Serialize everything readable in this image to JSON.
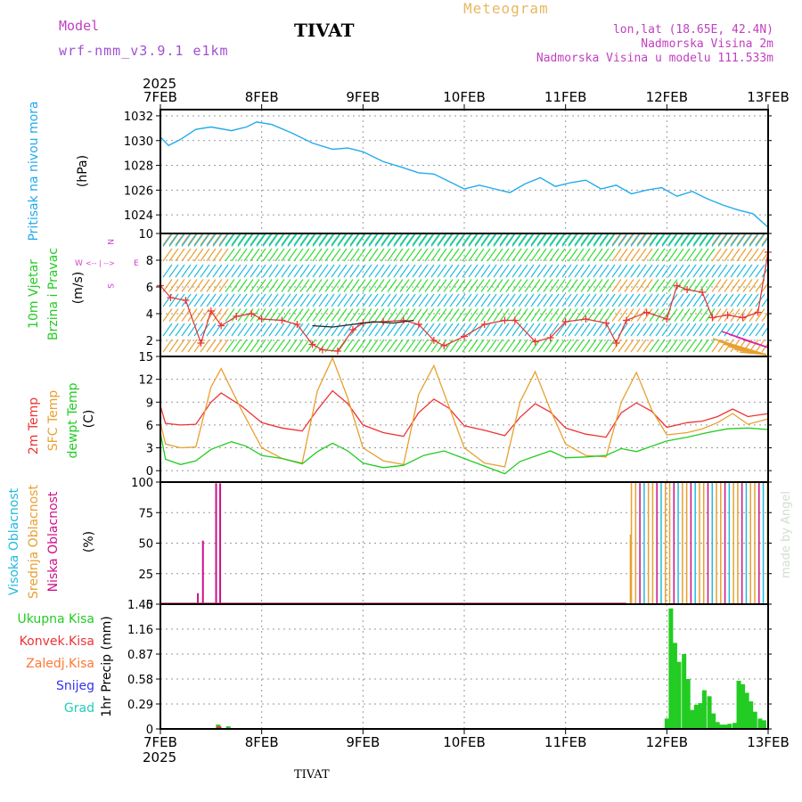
{
  "header": {
    "model_label": "Model",
    "model_name": "wrf-nmm_v3.9.1 e1km",
    "title": "TIVAT",
    "meteogram_label": "Meteogram",
    "lonlat": "lon,lat (18.65E, 42.4N)",
    "elevation": "Nadmorska Visina 2m",
    "model_elevation": "Nadmorska Visina u modelu 111.533m"
  },
  "footer": {
    "station": "TIVAT"
  },
  "watermark": "made by Angel",
  "time_axis": {
    "year_top": "2025",
    "year_bottom": "2025",
    "days": [
      "7FEB",
      "8FEB",
      "9FEB",
      "10FEB",
      "11FEB",
      "12FEB",
      "13FEB"
    ]
  },
  "colors": {
    "pressure": "#22aaee",
    "temp2m": "#ee3333",
    "sfc": "#e8a030",
    "dewpoint": "#22cc22",
    "high_cloud": "#22bbdd",
    "mid_cloud": "#e8a030",
    "low_cloud": "#cc1188",
    "precip_total": "#22cc22",
    "precip_conv": "#ee3333",
    "precip_frz": "#ff7733",
    "snow": "#3333ee",
    "hail": "#22ccbb",
    "wind_label": "#22cc22",
    "compass": "#cc44cc"
  },
  "chart_data": [
    {
      "type": "line",
      "name": "pressure",
      "ylabel": [
        "Pritisak na nivou mora",
        "(hPa)"
      ],
      "ylim": [
        1022.5,
        1032.5
      ],
      "yticks": [
        "1024",
        "1026",
        "1028",
        "1030",
        "1032"
      ],
      "ytick_values": [
        1024,
        1026,
        1028,
        1030,
        1032
      ],
      "grid": true,
      "series": [
        {
          "x": [
            0,
            0.08,
            0.2,
            0.35,
            0.5,
            0.7,
            0.85,
            0.95,
            1.1,
            1.3,
            1.5,
            1.7,
            1.85,
            2.0,
            2.2,
            2.4,
            2.55,
            2.7,
            2.85,
            3.0,
            3.15,
            3.3,
            3.45,
            3.6,
            3.75,
            3.9,
            4.05,
            4.2,
            4.35,
            4.5,
            4.65,
            4.8,
            4.95,
            5.1,
            5.25,
            5.4,
            5.55,
            5.7,
            5.85,
            6.0
          ],
          "y": [
            1030.3,
            1029.6,
            1030.1,
            1030.9,
            1031.1,
            1030.8,
            1031.1,
            1031.5,
            1031.3,
            1030.6,
            1029.8,
            1029.3,
            1029.4,
            1029.1,
            1028.3,
            1027.8,
            1027.4,
            1027.3,
            1026.7,
            1026.1,
            1026.4,
            1026.1,
            1025.8,
            1026.5,
            1027.0,
            1026.3,
            1026.6,
            1026.8,
            1026.1,
            1026.4,
            1025.7,
            1026.0,
            1026.2,
            1025.5,
            1025.9,
            1025.3,
            1024.8,
            1024.4,
            1024.1,
            1023.0
          ]
        }
      ]
    },
    {
      "type": "scatter",
      "name": "wind",
      "ylabel": [
        "10m Vjetar",
        "Brzina i Pravac",
        "(m/s)"
      ],
      "compass": {
        "n": "N",
        "s": "S",
        "e": "E",
        "w": "W",
        "arrows": "<-- | -->"
      },
      "ylim": [
        0.8,
        10
      ],
      "yticks": [
        "2",
        "4",
        "6",
        "8",
        "10"
      ],
      "ytick_values": [
        2,
        4,
        6,
        8,
        10
      ],
      "grid": true,
      "barb_rows": [
        {
          "y": 9.6,
          "color": "#33dd33"
        },
        {
          "y": 9.5,
          "color": "#22bbdd"
        },
        {
          "y": 8.4,
          "color": "#33dd33"
        },
        {
          "y": 7.2,
          "color": "#22bbdd"
        },
        {
          "y": 6.1,
          "color": "#33dd33"
        },
        {
          "y": 5.0,
          "color": "#22bbdd"
        },
        {
          "y": 3.9,
          "color": "#33dd33"
        },
        {
          "y": 2.8,
          "color": "#22bbdd"
        },
        {
          "y": 1.6,
          "color": "#33dd33"
        }
      ],
      "orange_segments": [
        [
          0,
          0.6
        ],
        [
          4.4,
          4.8
        ],
        [
          5.4,
          6.0
        ]
      ],
      "speed": {
        "x": [
          0,
          0.1,
          0.25,
          0.4,
          0.5,
          0.6,
          0.75,
          0.9,
          1.0,
          1.2,
          1.35,
          1.5,
          1.6,
          1.75,
          1.9,
          2.0,
          2.2,
          2.4,
          2.55,
          2.7,
          2.8,
          3.0,
          3.2,
          3.4,
          3.5,
          3.7,
          3.85,
          4.0,
          4.2,
          4.4,
          4.5,
          4.6,
          4.8,
          5.0,
          5.1,
          5.2,
          5.35,
          5.45,
          5.6,
          5.75,
          5.9,
          6.0
        ],
        "y": [
          6.1,
          5.2,
          5.0,
          1.8,
          4.2,
          3.1,
          3.8,
          4.0,
          3.6,
          3.5,
          3.2,
          1.7,
          1.3,
          1.2,
          2.8,
          3.3,
          3.4,
          3.5,
          3.2,
          2.0,
          1.6,
          2.3,
          3.2,
          3.5,
          3.5,
          1.9,
          2.2,
          3.4,
          3.6,
          3.3,
          1.8,
          3.5,
          4.1,
          3.6,
          6.1,
          5.8,
          5.6,
          3.7,
          3.9,
          3.7,
          4.1,
          8.6
        ]
      },
      "pressure_wind": {
        "x": [
          1.5,
          1.7,
          1.9,
          2.1,
          2.3,
          2.5
        ],
        "y": [
          3.1,
          3.0,
          3.2,
          3.4,
          3.3,
          3.5
        ]
      }
    },
    {
      "type": "line",
      "name": "temperature",
      "ylabel": [
        "2m Temp",
        "SFC Temp",
        "dewpt Temp",
        "(C)"
      ],
      "ylim": [
        -1.5,
        15
      ],
      "yticks": [
        "0",
        "3",
        "6",
        "9",
        "12",
        "15"
      ],
      "ytick_values": [
        0,
        3,
        6,
        9,
        12,
        15
      ],
      "grid": true,
      "series": [
        {
          "name": "2m Temp",
          "x": [
            0,
            0.05,
            0.2,
            0.35,
            0.5,
            0.6,
            0.8,
            1.0,
            1.2,
            1.4,
            1.55,
            1.7,
            1.85,
            2.0,
            2.2,
            2.4,
            2.55,
            2.7,
            2.85,
            3.0,
            3.2,
            3.4,
            3.55,
            3.7,
            3.85,
            4.0,
            4.2,
            4.4,
            4.55,
            4.7,
            4.85,
            5.0,
            5.2,
            5.35,
            5.5,
            5.65,
            5.8,
            6.0
          ],
          "y": [
            8.5,
            6.2,
            6.0,
            6.1,
            9.0,
            10.2,
            8.5,
            6.3,
            5.6,
            5.2,
            8.0,
            10.5,
            8.8,
            6.0,
            5.0,
            4.5,
            7.6,
            9.4,
            8.2,
            5.9,
            5.3,
            4.6,
            7.0,
            8.8,
            7.7,
            5.6,
            4.8,
            4.4,
            7.6,
            8.9,
            7.8,
            5.7,
            6.3,
            6.5,
            7.1,
            8.1,
            7.1,
            7.5
          ]
        },
        {
          "name": "SFC Temp",
          "x": [
            0,
            0.05,
            0.2,
            0.35,
            0.5,
            0.6,
            0.8,
            1.0,
            1.2,
            1.4,
            1.55,
            1.7,
            1.85,
            2.0,
            2.2,
            2.4,
            2.55,
            2.7,
            2.85,
            3.0,
            3.2,
            3.4,
            3.55,
            3.7,
            3.85,
            4.0,
            4.2,
            4.4,
            4.55,
            4.7,
            4.85,
            5.0,
            5.2,
            5.35,
            5.5,
            5.65,
            5.8,
            6.0
          ],
          "y": [
            6.3,
            3.5,
            3.0,
            3.1,
            11.0,
            13.4,
            8.0,
            3.0,
            1.6,
            1.0,
            10.5,
            14.8,
            9.5,
            3.0,
            1.3,
            0.8,
            10.0,
            13.8,
            8.4,
            3.0,
            1.0,
            0.5,
            9.0,
            13.0,
            8.0,
            3.5,
            2.0,
            1.8,
            9.0,
            12.9,
            8.0,
            4.7,
            5.0,
            5.5,
            6.3,
            7.5,
            6.1,
            6.8
          ]
        },
        {
          "name": "dewpt Temp",
          "x": [
            0,
            0.05,
            0.2,
            0.35,
            0.5,
            0.7,
            0.85,
            1.0,
            1.2,
            1.4,
            1.55,
            1.7,
            1.85,
            2.0,
            2.2,
            2.4,
            2.6,
            2.8,
            3.0,
            3.2,
            3.4,
            3.55,
            3.7,
            3.85,
            4.0,
            4.2,
            4.4,
            4.55,
            4.7,
            4.85,
            5.0,
            5.2,
            5.4,
            5.6,
            5.8,
            6.0
          ],
          "y": [
            5.0,
            1.5,
            0.8,
            1.3,
            2.8,
            3.8,
            3.2,
            2.0,
            1.6,
            0.9,
            2.5,
            3.6,
            2.6,
            1.0,
            0.4,
            0.7,
            2.0,
            2.6,
            1.6,
            0.6,
            -0.4,
            1.2,
            1.9,
            2.6,
            1.7,
            1.8,
            2.0,
            2.9,
            2.5,
            3.2,
            3.9,
            4.4,
            5.0,
            5.5,
            5.6,
            5.4
          ]
        }
      ]
    },
    {
      "type": "bar",
      "name": "cloud",
      "ylabel": [
        "Visoka Oblacnost",
        "Srednja Oblacnost",
        "Niska Oblacnost",
        "(%)"
      ],
      "ylim": [
        0,
        100
      ],
      "yticks": [
        "0",
        "25",
        "50",
        "75",
        "100"
      ],
      "ytick_values": [
        0,
        25,
        50,
        75,
        100
      ],
      "grid": true,
      "low_cloud": {
        "x": [
          0.37,
          0.42,
          0.55,
          0.59
        ],
        "y": [
          9,
          52,
          99,
          99
        ]
      },
      "mid_cloud": {
        "x_start": 4.65,
        "x_end": 6.0,
        "value": 100,
        "first": {
          "x": 4.64,
          "y": 57
        }
      },
      "high_cloud": {
        "x": [
          4.66,
          4.9,
          5.0,
          5.02,
          5.05,
          5.08,
          5.1,
          5.5
        ],
        "y": [
          100,
          100,
          52,
          52,
          52,
          52,
          100,
          100
        ]
      }
    },
    {
      "type": "bar",
      "name": "precipitation",
      "ylabel": [
        "1hr Precip (mm)"
      ],
      "legend": [
        "Ukupna Kisa",
        "Konvek.Kisa",
        "Zaledj.Kisa",
        "Snijeg",
        "Grad"
      ],
      "ylim": [
        0,
        1.45
      ],
      "yticks": [
        "0",
        "0.29",
        "0.58",
        "0.87",
        "1.16",
        "1.45"
      ],
      "ytick_values": [
        0,
        0.29,
        0.58,
        0.87,
        1.16,
        1.45
      ],
      "grid": true,
      "total": {
        "x": [
          0.57,
          0.67,
          5.0,
          5.04,
          5.08,
          5.12,
          5.17,
          5.21,
          5.25,
          5.29,
          5.33,
          5.37,
          5.42,
          5.46,
          5.5,
          5.54,
          5.58,
          5.62,
          5.67,
          5.71,
          5.75,
          5.79,
          5.83,
          5.87,
          5.92,
          5.96
        ],
        "y": [
          0.05,
          0.03,
          0.12,
          1.4,
          1.0,
          0.78,
          0.87,
          0.58,
          0.22,
          0.28,
          0.3,
          0.45,
          0.38,
          0.18,
          0.08,
          0.05,
          0.05,
          0.06,
          0.07,
          0.56,
          0.52,
          0.42,
          0.32,
          0.2,
          0.12,
          0.1
        ]
      },
      "convective": {
        "x": [
          0.58
        ],
        "y": [
          0.03
        ]
      }
    }
  ]
}
